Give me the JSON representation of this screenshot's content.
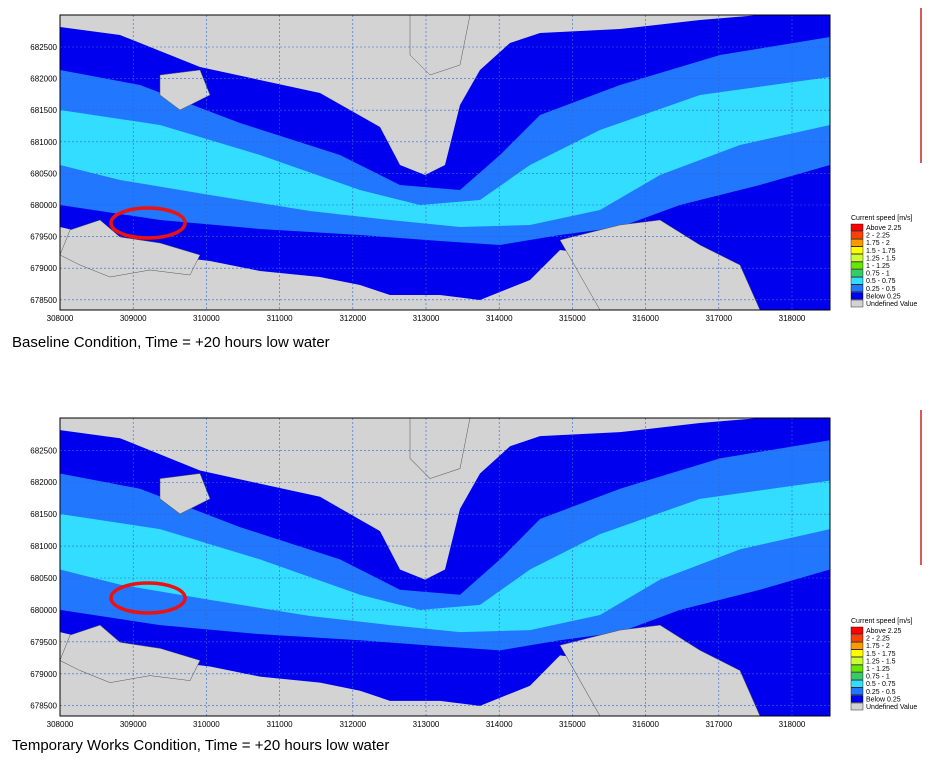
{
  "panels": [
    {
      "caption": "Baseline Condition, Time = +20 hours low water",
      "xticks": [
        "308000",
        "309000",
        "310000",
        "311000",
        "312000",
        "313000",
        "314000",
        "315000",
        "316000",
        "317000",
        "318000"
      ],
      "yticks": [
        "682500",
        "682000",
        "681500",
        "681000",
        "680500",
        "680000",
        "679500",
        "679000",
        "678500"
      ],
      "legend_title": "Current speed [m/s]",
      "legend": [
        {
          "label": "Above 2.25",
          "color": "#ff0000"
        },
        {
          "label": "2 - 2.25",
          "color": "#ff4000"
        },
        {
          "label": "1.75 - 2",
          "color": "#ff9900"
        },
        {
          "label": "1.5 - 1.75",
          "color": "#ffff00"
        },
        {
          "label": "1.25 - 1.5",
          "color": "#ccff33"
        },
        {
          "label": "1 - 1.25",
          "color": "#66e600"
        },
        {
          "label": "0.75 - 1",
          "color": "#33cc66"
        },
        {
          "label": "0.5 - 0.75",
          "color": "#33ddff"
        },
        {
          "label": "0.25 - 0.5",
          "color": "#2277ff"
        },
        {
          "label": "Below 0.25",
          "color": "#0000ee"
        },
        {
          "label": "Undefined Value",
          "color": "#d3d3d3"
        }
      ]
    },
    {
      "caption": "Temporary Works Condition, Time = +20 hours low water",
      "xticks": [
        "308000",
        "309000",
        "310000",
        "311000",
        "312000",
        "313000",
        "314000",
        "315000",
        "316000",
        "317000",
        "318000"
      ],
      "yticks": [
        "682500",
        "682000",
        "681500",
        "681000",
        "680500",
        "680000",
        "679500",
        "679000",
        "678500"
      ],
      "legend_title": "Current speed [m/s]",
      "legend": [
        {
          "label": "Above 2.25",
          "color": "#ff0000"
        },
        {
          "label": "2 - 2.25",
          "color": "#ff4000"
        },
        {
          "label": "1.75 - 2",
          "color": "#ff9900"
        },
        {
          "label": "1.5 - 1.75",
          "color": "#ffff00"
        },
        {
          "label": "1.25 - 1.5",
          "color": "#ccff33"
        },
        {
          "label": "1 - 1.25",
          "color": "#66e600"
        },
        {
          "label": "0.75 - 1",
          "color": "#33cc66"
        },
        {
          "label": "0.5 - 0.75",
          "color": "#33ddff"
        },
        {
          "label": "0.25 - 0.5",
          "color": "#2277ff"
        },
        {
          "label": "Below 0.25",
          "color": "#0000ee"
        },
        {
          "label": "Undefined Value",
          "color": "#d3d3d3"
        }
      ]
    }
  ]
}
